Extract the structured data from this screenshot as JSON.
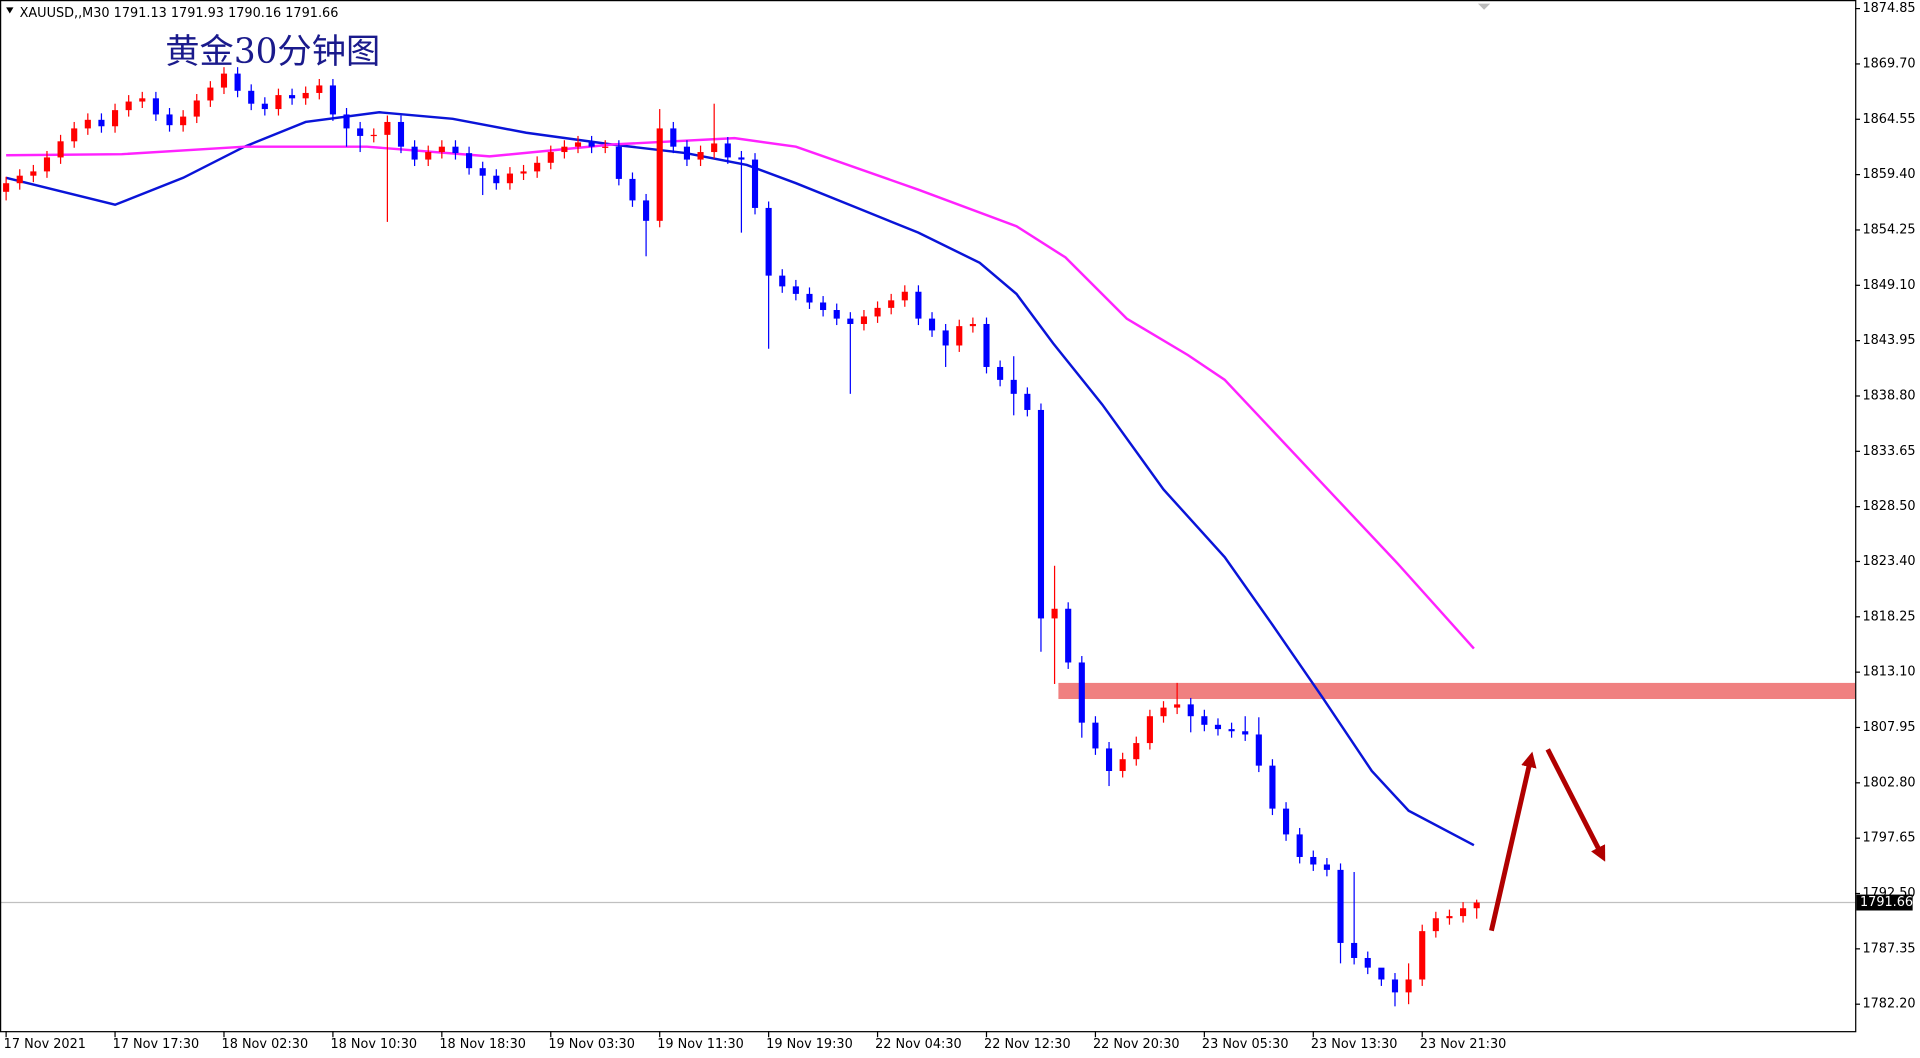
{
  "chart_data": {
    "type": "candlestick",
    "header": "XAUUSD,,M30 1791.13 1791.93 1790.16 1791.66",
    "title": "黄金30分钟图",
    "up_color": "#ff0000",
    "down_color": "#0000ff",
    "ylim": [
      1779.7,
      1875.65
    ],
    "yticks": [
      {
        "value": 1874.85,
        "label": "1874.85"
      },
      {
        "value": 1869.7,
        "label": "1869.70"
      },
      {
        "value": 1864.55,
        "label": "1864.55"
      },
      {
        "value": 1859.4,
        "label": "1859.40"
      },
      {
        "value": 1854.25,
        "label": "1854.25"
      },
      {
        "value": 1849.1,
        "label": "1849.10"
      },
      {
        "value": 1843.95,
        "label": "1843.95"
      },
      {
        "value": 1838.8,
        "label": "1838.80"
      },
      {
        "value": 1833.65,
        "label": "1833.65"
      },
      {
        "value": 1828.5,
        "label": "1828.50"
      },
      {
        "value": 1823.4,
        "label": "1823.40"
      },
      {
        "value": 1818.25,
        "label": "1818.25"
      },
      {
        "value": 1813.1,
        "label": "1813.10"
      },
      {
        "value": 1807.95,
        "label": "1807.95"
      },
      {
        "value": 1802.8,
        "label": "1802.80"
      },
      {
        "value": 1797.65,
        "label": "1797.65"
      },
      {
        "value": 1792.5,
        "label": "1792.50"
      },
      {
        "value": 1787.35,
        "label": "1787.35"
      },
      {
        "value": 1782.2,
        "label": "1782.20"
      }
    ],
    "xticks": [
      {
        "value": 0,
        "label": "17 Nov 2021"
      },
      {
        "value": 8,
        "label": "17 Nov 17:30"
      },
      {
        "value": 16,
        "label": "18 Nov 02:30"
      },
      {
        "value": 24,
        "label": "18 Nov 10:30"
      },
      {
        "value": 32,
        "label": "18 Nov 18:30"
      },
      {
        "value": 40,
        "label": "19 Nov 03:30"
      },
      {
        "value": 48,
        "label": "19 Nov 11:30"
      },
      {
        "value": 56,
        "label": "19 Nov 19:30"
      },
      {
        "value": 64,
        "label": "22 Nov 04:30"
      },
      {
        "value": 72,
        "label": "22 Nov 12:30"
      },
      {
        "value": 80,
        "label": "22 Nov 20:30"
      },
      {
        "value": 88,
        "label": "23 Nov 05:30"
      },
      {
        "value": 96,
        "label": "23 Nov 13:30"
      },
      {
        "value": 104,
        "label": "23 Nov 21:30"
      }
    ],
    "last_price": {
      "value": 1791.66,
      "label": "1791.66"
    },
    "zone": {
      "start": 78,
      "low": 1810.6,
      "high": 1812.1,
      "color": "#f08080"
    },
    "open": [
      1857.8,
      1858.6,
      1859.3,
      1859.7,
      1861.0,
      1862.5,
      1863.7,
      1864.5,
      1863.9,
      1865.4,
      1866.2,
      1866.5,
      1865.0,
      1864.0,
      1864.8,
      1866.3,
      1867.5,
      1868.8,
      1867.2,
      1866.0,
      1865.5,
      1866.8,
      1866.5,
      1867.0,
      1867.7,
      1865.0,
      1863.7,
      1863.0,
      1863.1,
      1864.3,
      1862.0,
      1860.8,
      1861.5,
      1862.0,
      1861.4,
      1860.0,
      1859.3,
      1858.6,
      1859.5,
      1859.7,
      1860.5,
      1861.5,
      1862.0,
      1862.4,
      1862.0,
      1862.0,
      1859.0,
      1857.0,
      1855.1,
      1863.7,
      1862.0,
      1860.8,
      1861.5,
      1862.3,
      1861.0,
      1860.8,
      1856.3,
      1850.0,
      1849.0,
      1848.3,
      1847.5,
      1846.8,
      1846.0,
      1845.5,
      1846.2,
      1847.0,
      1847.7,
      1848.5,
      1846.0,
      1844.9,
      1843.5,
      1845.3,
      1845.5,
      1841.5,
      1840.3,
      1839.0,
      1837.5,
      1818.1,
      1819.0,
      1814.0,
      1808.4,
      1806.0,
      1803.9,
      1805.0,
      1806.5,
      1809.0,
      1809.8,
      1810.1,
      1809.0,
      1808.2,
      1807.8,
      1807.6,
      1807.3,
      1804.4,
      1800.4,
      1798.0,
      1795.9,
      1795.2,
      1794.7,
      1787.9,
      1786.5,
      1785.6,
      1784.5,
      1783.3,
      1784.5,
      1789.0,
      1790.2,
      1790.4,
      1791.13
    ],
    "high": [
      1859.2,
      1859.9,
      1860.3,
      1861.6,
      1863.1,
      1864.3,
      1865.1,
      1865.1,
      1866.0,
      1866.8,
      1867.1,
      1867.1,
      1865.6,
      1865.4,
      1866.9,
      1868.1,
      1869.4,
      1869.4,
      1867.8,
      1866.6,
      1867.4,
      1867.4,
      1867.6,
      1868.3,
      1868.3,
      1865.6,
      1864.3,
      1863.7,
      1864.9,
      1864.9,
      1862.6,
      1862.1,
      1862.6,
      1862.6,
      1862.0,
      1860.6,
      1859.9,
      1860.1,
      1860.3,
      1861.1,
      1862.1,
      1862.6,
      1863.0,
      1863.0,
      1862.6,
      1862.6,
      1859.6,
      1857.6,
      1865.5,
      1864.3,
      1862.6,
      1862.1,
      1866.0,
      1862.9,
      1861.6,
      1861.4,
      1856.9,
      1850.6,
      1849.6,
      1848.9,
      1848.1,
      1847.4,
      1846.6,
      1846.8,
      1847.6,
      1848.3,
      1849.1,
      1849.1,
      1846.6,
      1845.5,
      1845.9,
      1846.1,
      1846.1,
      1842.1,
      1842.5,
      1839.6,
      1838.1,
      1823.0,
      1819.6,
      1814.6,
      1809.0,
      1806.6,
      1805.6,
      1807.1,
      1809.6,
      1810.4,
      1812.1,
      1810.7,
      1809.6,
      1808.8,
      1808.4,
      1809.0,
      1808.9,
      1805.0,
      1801.0,
      1798.6,
      1796.5,
      1795.8,
      1795.3,
      1794.5,
      1787.1,
      1785.1,
      1785.1,
      1786.0,
      1789.6,
      1790.8,
      1791.0,
      1791.7,
      1791.93
    ],
    "low": [
      1857.0,
      1858.0,
      1858.7,
      1859.1,
      1860.4,
      1861.9,
      1863.1,
      1863.3,
      1863.3,
      1864.8,
      1865.6,
      1864.4,
      1863.4,
      1863.4,
      1864.2,
      1865.7,
      1866.9,
      1866.6,
      1865.4,
      1864.9,
      1864.9,
      1865.9,
      1865.9,
      1866.4,
      1864.4,
      1862.0,
      1861.5,
      1862.4,
      1855.0,
      1861.4,
      1860.2,
      1860.2,
      1860.9,
      1860.8,
      1859.4,
      1857.5,
      1858.0,
      1858.0,
      1858.9,
      1859.1,
      1859.9,
      1860.9,
      1861.4,
      1861.4,
      1861.4,
      1858.4,
      1856.4,
      1851.8,
      1854.5,
      1861.4,
      1860.2,
      1860.2,
      1860.9,
      1860.4,
      1854.0,
      1855.7,
      1843.2,
      1848.4,
      1847.7,
      1846.9,
      1846.2,
      1845.4,
      1839.0,
      1844.9,
      1845.6,
      1846.4,
      1847.1,
      1845.4,
      1844.3,
      1841.5,
      1842.9,
      1844.7,
      1840.9,
      1839.7,
      1837.0,
      1836.9,
      1815.0,
      1812.0,
      1813.4,
      1807.0,
      1805.4,
      1802.5,
      1803.3,
      1804.4,
      1805.9,
      1808.4,
      1809.2,
      1807.5,
      1807.6,
      1807.2,
      1807.0,
      1806.7,
      1803.8,
      1799.8,
      1797.4,
      1795.3,
      1794.6,
      1794.1,
      1786.0,
      1785.9,
      1785.0,
      1783.9,
      1782.0,
      1782.2,
      1783.9,
      1788.4,
      1789.6,
      1789.8,
      1790.16
    ],
    "close": [
      1858.6,
      1859.3,
      1859.7,
      1861.0,
      1862.5,
      1863.7,
      1864.5,
      1863.9,
      1865.4,
      1866.2,
      1866.5,
      1865.0,
      1864.0,
      1864.8,
      1866.3,
      1867.5,
      1868.8,
      1867.2,
      1866.0,
      1865.5,
      1866.8,
      1866.5,
      1867.0,
      1867.7,
      1865.0,
      1863.7,
      1863.0,
      1863.1,
      1864.3,
      1862.0,
      1860.8,
      1861.5,
      1862.0,
      1861.4,
      1860.0,
      1859.3,
      1858.6,
      1859.5,
      1859.7,
      1860.5,
      1861.5,
      1862.0,
      1862.4,
      1862.0,
      1862.0,
      1859.0,
      1857.0,
      1855.1,
      1863.7,
      1862.0,
      1860.8,
      1861.5,
      1862.3,
      1861.0,
      1860.8,
      1856.3,
      1850.0,
      1849.0,
      1848.3,
      1847.5,
      1846.8,
      1846.0,
      1845.5,
      1846.2,
      1847.0,
      1847.7,
      1848.5,
      1846.0,
      1844.9,
      1843.5,
      1845.3,
      1845.5,
      1841.5,
      1840.3,
      1839.0,
      1837.5,
      1818.1,
      1819.0,
      1814.0,
      1808.4,
      1806.0,
      1803.9,
      1805.0,
      1806.5,
      1809.0,
      1809.8,
      1810.1,
      1809.0,
      1808.2,
      1807.8,
      1807.6,
      1807.3,
      1804.4,
      1800.4,
      1798.0,
      1795.9,
      1795.2,
      1794.7,
      1787.9,
      1786.5,
      1785.6,
      1784.5,
      1783.3,
      1784.5,
      1789.0,
      1790.2,
      1790.4,
      1791.13,
      1791.66
    ],
    "ma": [
      {
        "color": "#0a14d8",
        "x": [
          0,
          8,
          13,
          17.5,
          22,
          27.4,
          32.8,
          38.2,
          44.5,
          49.9,
          54.4,
          58,
          62.5,
          67,
          71.5,
          74.2,
          76.9,
          80.5,
          85,
          89.5,
          93,
          96.7,
          100.3,
          103,
          107.8
        ],
        "values": [
          1859.1,
          1856.6,
          1859.1,
          1862.0,
          1864.3,
          1865.2,
          1864.6,
          1863.3,
          1862.2,
          1861.4,
          1860.3,
          1858.6,
          1856.3,
          1854.0,
          1851.2,
          1848.3,
          1843.7,
          1838.0,
          1830.1,
          1823.8,
          1817.5,
          1810.7,
          1803.9,
          1800.2,
          1797.0
        ]
      },
      {
        "color": "#ff22ff",
        "x": [
          0,
          8.5,
          17.5,
          26.5,
          35.5,
          44.5,
          53.5,
          58,
          67,
          74.2,
          77.8,
          82.3,
          86.8,
          89.5,
          96.7,
          102.2,
          107.8
        ],
        "values": [
          1861.2,
          1861.3,
          1862.0,
          1862.0,
          1861.1,
          1862.2,
          1862.8,
          1862.0,
          1858.0,
          1854.6,
          1851.7,
          1846.0,
          1842.6,
          1840.3,
          1830.6,
          1823.2,
          1815.3
        ]
      }
    ]
  }
}
